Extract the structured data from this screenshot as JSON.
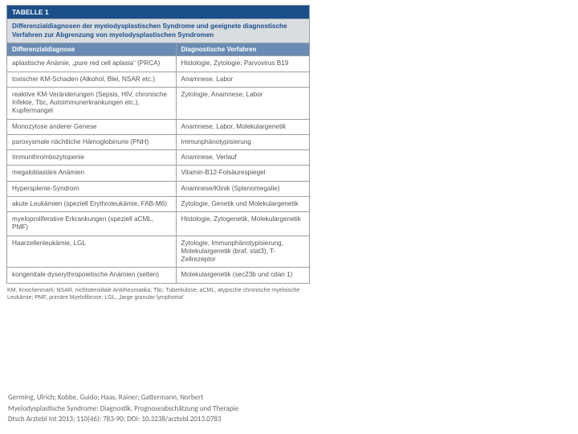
{
  "table": {
    "label": "TABELLE 1",
    "title": "Differenzialdiagnosen der myelodysplastischen Syndrome und geeignete diagnostische Verfahren zur Abgrenzung von myelodysplastischen Syndromen",
    "col1": "Differenzialdiagnose",
    "col2": "Diagnostische Verfahren",
    "rows": [
      {
        "d": "aplastische Anämie, „pure red cell aplasia“ (PRCA)",
        "v": "Histologie, Zytologie; Parvovirus B19"
      },
      {
        "d": "toxischer KM-Schaden (Alkohol, Blei, NSAR etc.)",
        "v": "Anamnese, Labor"
      },
      {
        "d": "reaktive KM-Veränderungen (Sepsis, HIV, chronische Infekte, Tbc, Autoimmunerkrankungen etc.), Kupfermangel",
        "v": "Zytologie, Anamnese, Labor"
      },
      {
        "d": "Monozytose anderer Genese",
        "v": "Anamnese, Labor, Molekulargenetik"
      },
      {
        "d": "paroxysmale nächtliche Hämoglobinurie (PNH)",
        "v": "Immunphänotypisierung"
      },
      {
        "d": "Immunthrombozytopenie",
        "v": "Anamnese, Verlauf"
      },
      {
        "d": "megaloblastäre Anämien",
        "v": "Vitamin-B12-Folsäurespiegel"
      },
      {
        "d": "Hypersplenie-Syndrom",
        "v": "Anamnese/Klinik (Splenomegalie)"
      },
      {
        "d": "akute Leukämien (speziell Erythroleukämie, FAB-M6)",
        "v": "Zytologie, Genetik und Molekulargenetik"
      },
      {
        "d": "myeloproliferative Erkrankungen (speziell aCML, PMF)",
        "v": "Histologie, Zytogenetik, Molekulargenetik"
      },
      {
        "d": "Haarzellenleukämie, LGL",
        "v": "Zytologie, Immunphänotypisierung, Molekulargenetik (braf, stat3), T-Zellrezeptor"
      },
      {
        "d": "kongenitale dyserythropoietische Anämien (selten)",
        "v": "Molekulargenetik (sec23b und cdan 1)"
      }
    ],
    "footnote": "KM, Knochenmark; NSAR, nichtsteroidale Antirheumatika; Tbc, Tuberkulose; aCML, atypische chronische myeloische Leukämie; PMF, primäre Myelofibrose; LGL, „large granular lymphoma“"
  },
  "citation": {
    "authors": "Germing, Ulrich; Kobbe, Guido; Haas, Rainer; Gattermann, Norbert",
    "title": "Myelodysplastische Syndrome: Diagnostik, Prognoseabschätzung und Therapie",
    "ref": "Dtsch Arztebl Int 2013; 110(46): 783-90; DOI: 10.3238/arztebl.2013.0783"
  },
  "colors": {
    "header_bg": "#1b4f8a",
    "title_bg": "#d8dde2",
    "colhdr_bg": "#6a8bb3",
    "border": "#9aa0a6",
    "text": "#555"
  }
}
